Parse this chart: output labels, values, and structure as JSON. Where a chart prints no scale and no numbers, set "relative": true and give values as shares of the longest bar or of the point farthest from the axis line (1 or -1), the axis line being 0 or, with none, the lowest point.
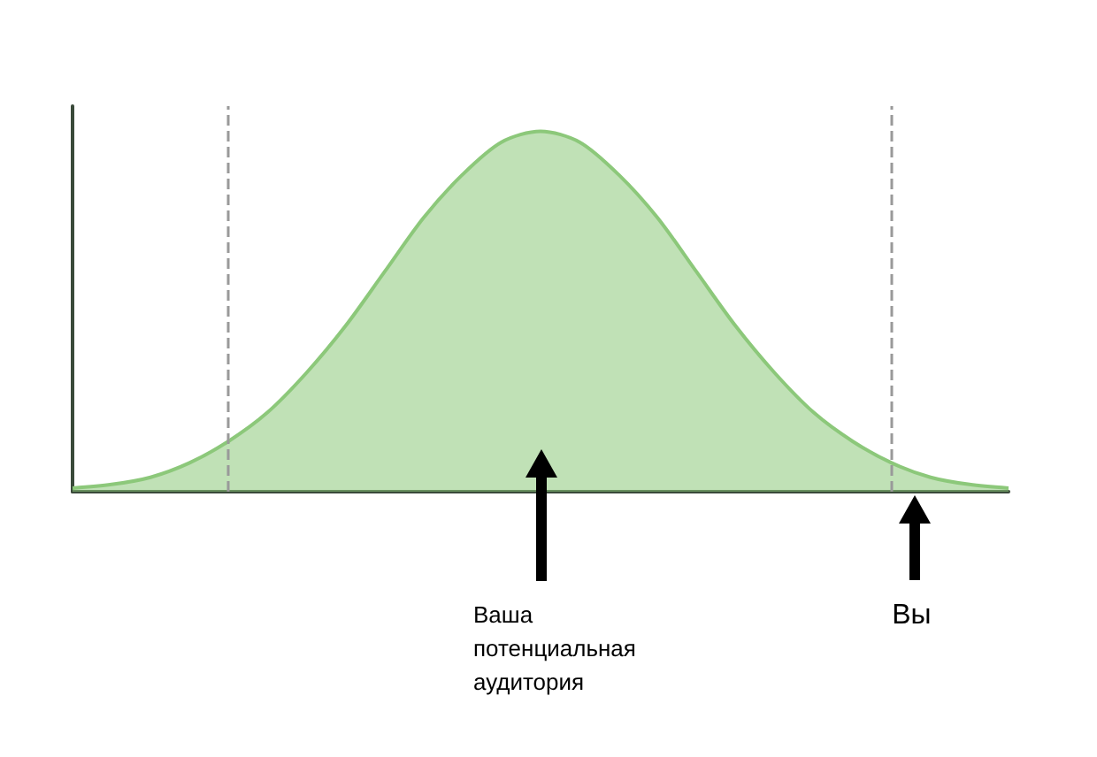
{
  "chart_data": {
    "type": "area",
    "relative": true,
    "color": "#8cc87a",
    "categories": [
      null,
      null,
      null,
      null,
      null,
      null,
      null,
      null,
      null,
      null,
      null,
      null,
      null,
      null,
      null,
      null,
      null,
      null,
      null,
      null,
      null,
      null,
      null,
      null,
      null
    ],
    "values": [
      0.01,
      0.02,
      0.04,
      0.08,
      0.14,
      0.22,
      0.33,
      0.46,
      0.61,
      0.76,
      0.88,
      0.97,
      1,
      0.97,
      0.88,
      0.76,
      0.61,
      0.46,
      0.33,
      0.22,
      0.14,
      0.08,
      0.04,
      0.02,
      0.01
    ],
    "annotations": [
      "Ваша\nпотенциальная\nаудитория",
      "Вы"
    ]
  }
}
